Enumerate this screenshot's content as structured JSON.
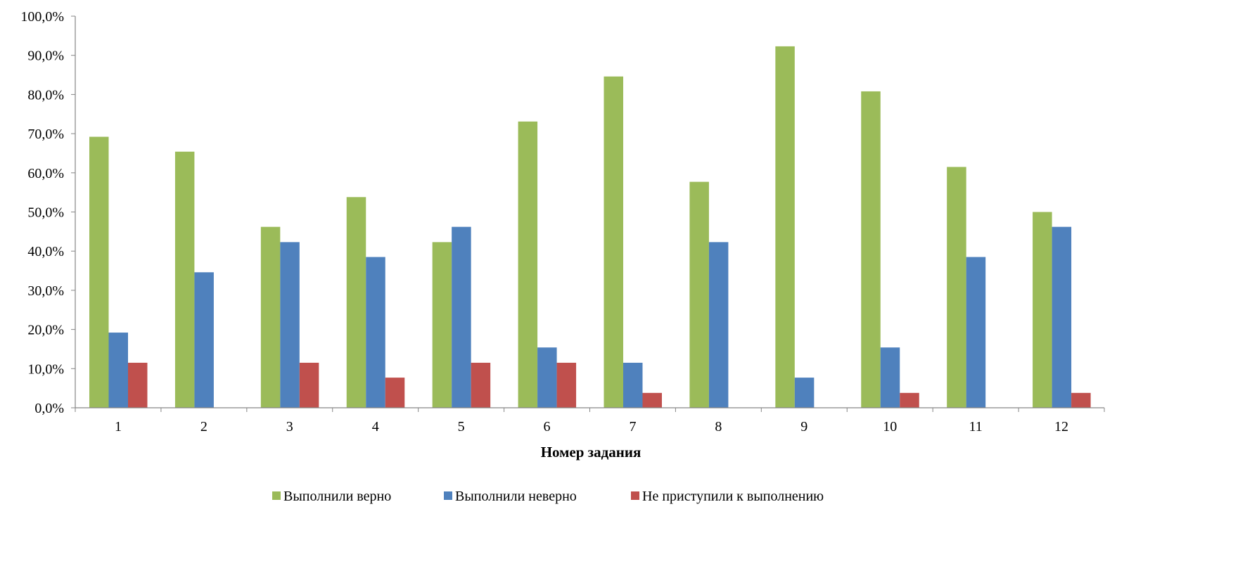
{
  "chart_data": {
    "type": "bar",
    "title": "",
    "xlabel": "Номер задания",
    "ylabel": "",
    "categories": [
      "1",
      "2",
      "3",
      "4",
      "5",
      "6",
      "7",
      "8",
      "9",
      "10",
      "11",
      "12"
    ],
    "ylim": [
      0,
      100
    ],
    "yticks": [
      "0,0%",
      "10,0%",
      "20,0%",
      "30,0%",
      "40,0%",
      "50,0%",
      "60,0%",
      "70,0%",
      "80,0%",
      "90,0%",
      "100,0%"
    ],
    "grid": false,
    "legend_position": "bottom",
    "series": [
      {
        "name": "Выполнили верно",
        "color": "#9BBB59",
        "values": [
          69.2,
          65.4,
          46.2,
          53.8,
          42.3,
          73.1,
          84.6,
          57.7,
          92.3,
          80.8,
          61.5,
          50.0
        ]
      },
      {
        "name": "Выполнили неверно",
        "color": "#4F81BD",
        "values": [
          19.2,
          34.6,
          42.3,
          38.5,
          46.2,
          15.4,
          11.5,
          42.3,
          7.7,
          15.4,
          38.5,
          46.2
        ]
      },
      {
        "name": "Не приступили к выполнению",
        "color": "#C0504D",
        "values": [
          11.5,
          0,
          11.5,
          7.7,
          11.5,
          11.5,
          3.8,
          0,
          0,
          3.8,
          0,
          3.8
        ]
      }
    ]
  }
}
